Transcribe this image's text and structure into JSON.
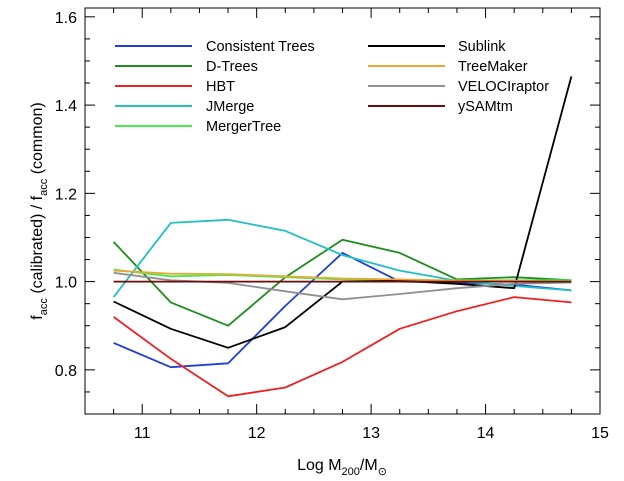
{
  "chart_data": {
    "type": "line",
    "xlim": [
      10.5,
      15
    ],
    "ylim": [
      0.7,
      1.62
    ],
    "x_ticks": [
      11,
      12,
      13,
      14,
      15
    ],
    "x_tick_labels": [
      "11",
      "12",
      "13",
      "14",
      "15"
    ],
    "y_ticks": [
      0.8,
      1.0,
      1.2,
      1.4,
      1.6
    ],
    "y_tick_labels": [
      "0.8",
      "1.0",
      "1.2",
      "1.4",
      "1.6"
    ],
    "xlabel": {
      "pre": "Log M",
      "sub1": "200",
      "mid": "/M",
      "sub2": "⊙"
    },
    "ylabel": {
      "f1": "f",
      "sub1": "acc",
      "mid": " (calibrated) / f",
      "sub2": "acc",
      "post": " (common)"
    },
    "grid": false,
    "legend_position": "top",
    "x": [
      10.75,
      11.25,
      11.75,
      12.25,
      12.75,
      13.25,
      13.75,
      14.25,
      14.75
    ],
    "series": [
      {
        "name": "Consistent Trees",
        "color": "#1f3fd8",
        "values": [
          0.861,
          0.806,
          0.815,
          0.945,
          1.065,
          1.0,
          0.998,
          0.993,
          0.98
        ]
      },
      {
        "name": "D-Trees",
        "color": "#1e8c1e",
        "values": [
          1.09,
          0.953,
          0.9,
          1.01,
          1.095,
          1.065,
          1.005,
          1.01,
          1.003
        ]
      },
      {
        "name": "HBT",
        "color": "#f02020",
        "values": [
          0.92,
          0.825,
          0.74,
          0.76,
          0.818,
          0.893,
          0.933,
          0.965,
          0.953
        ]
      },
      {
        "name": "JMerge",
        "color": "#22c0c0",
        "values": [
          0.965,
          1.133,
          1.14,
          1.115,
          1.06,
          1.025,
          1.002,
          0.99,
          0.98
        ]
      },
      {
        "name": "MergerTree",
        "color": "#44ee44",
        "values": [
          1.027,
          1.012,
          1.015,
          1.01,
          1.005,
          1.003,
          1.003,
          1.003,
          1.003
        ]
      },
      {
        "name": "Sublink",
        "color": "#000000",
        "values": [
          0.955,
          0.893,
          0.85,
          0.897,
          1.0,
          1.002,
          0.995,
          0.985,
          1.465
        ]
      },
      {
        "name": "TreeMaker",
        "color": "#e8a838",
        "values": [
          1.025,
          1.018,
          1.017,
          1.012,
          1.007,
          1.005,
          1.002,
          1.002,
          1.0
        ]
      },
      {
        "name": "VELOCIraptor",
        "color": "#909090",
        "values": [
          1.02,
          1.003,
          0.997,
          0.978,
          0.96,
          0.972,
          0.985,
          0.995,
          0.998
        ]
      },
      {
        "name": "ySAMtm",
        "color": "#6e0a0a",
        "values": [
          1.0,
          1.0,
          1.0,
          1.0,
          1.0,
          1.0,
          1.0,
          1.0,
          1.0
        ]
      }
    ]
  }
}
